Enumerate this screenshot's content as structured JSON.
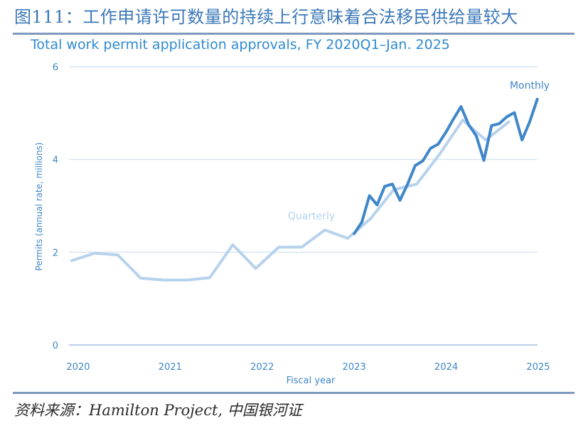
{
  "caption": "图111：工作申请许可数量的持续上行意味着合法移民供给量较大",
  "source": "资料来源：Hamilton Project, 中国银河证",
  "colors": {
    "caption": "#3b78b8",
    "rule": "#7f98bd",
    "title": "#2f8ad0",
    "quarterly": "#b7d2ec",
    "monthly": "#3f87c9",
    "grid": "#cfe0f0",
    "axis_text": "#3f87c9"
  },
  "chart_data": {
    "type": "line",
    "title": "Total work permit application approvals, FY 2020Q1–Jan. 2025",
    "xlabel": "Fiscal year",
    "ylabel": "Permits (annual rate, millions)",
    "xlim": [
      2020,
      2025
    ],
    "ylim": [
      0,
      6
    ],
    "x_ticks": [
      "2020",
      "2021",
      "2022",
      "2023",
      "2024",
      "2025"
    ],
    "y_ticks": [
      "0",
      "2",
      "4",
      "6"
    ],
    "grid": true,
    "series": [
      {
        "name": "Quarterly",
        "x": [
          1,
          2,
          3,
          4,
          5,
          6,
          7,
          8,
          9,
          10,
          11,
          12,
          13,
          14,
          15,
          16,
          17,
          18,
          19,
          20,
          21,
          22,
          23
        ],
        "x_label_note": "quarters from FY2020Q1",
        "y": [
          1.82,
          1.98,
          1.94,
          1.44,
          1.4,
          1.4,
          1.45,
          2.16,
          1.65,
          2.11,
          2.11,
          2.48,
          2.3,
          2.73,
          3.35,
          3.47,
          4.12,
          4.85,
          4.42,
          4.81,
          null,
          null,
          null
        ]
      },
      {
        "name": "Monthly",
        "y": [
          2.4,
          2.65,
          3.22,
          3.02,
          3.42,
          3.47,
          3.12,
          3.47,
          3.87,
          3.97,
          4.24,
          4.33,
          4.58,
          4.87,
          5.14,
          4.75,
          4.51,
          3.98,
          4.73,
          4.77,
          4.92,
          5.01,
          4.42,
          4.81,
          5.3
        ]
      }
    ]
  }
}
